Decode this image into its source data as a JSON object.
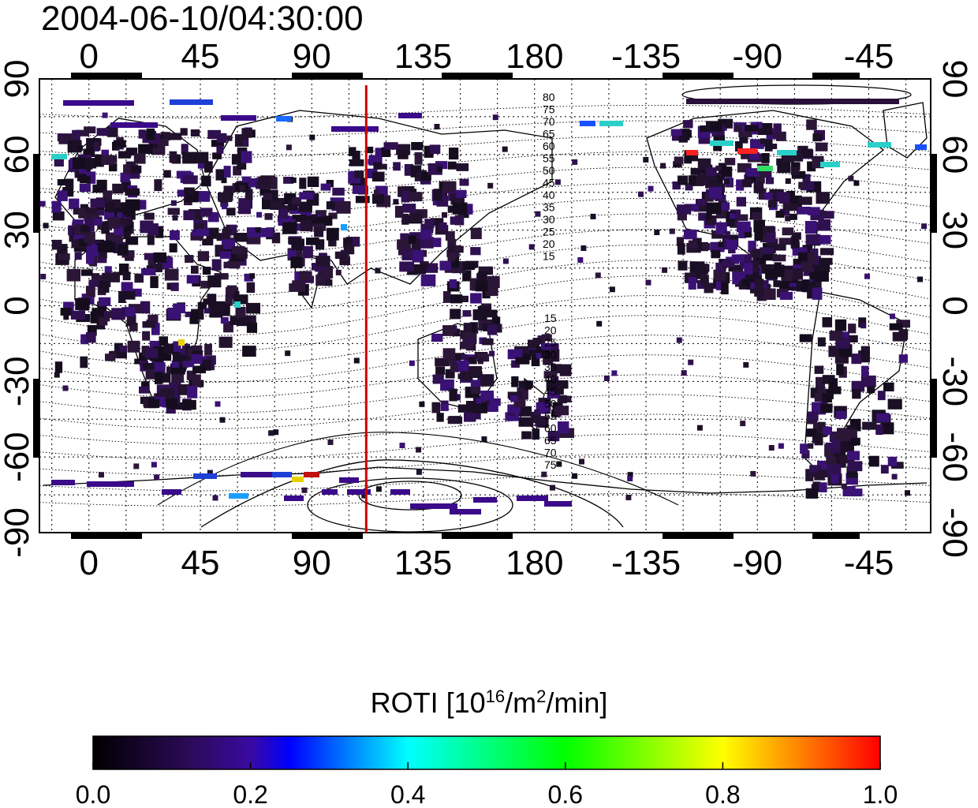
{
  "title": "2004-06-10/04:30:00",
  "map": {
    "lon_ticks": [
      "0",
      "45",
      "90",
      "135",
      "180",
      "-135",
      "-90",
      "-45"
    ],
    "lat_ticks": [
      "90",
      "60",
      "30",
      "0",
      "-30",
      "-60",
      "-90"
    ],
    "lon_range": [
      -20,
      340
    ],
    "lat_range": [
      -90,
      90
    ],
    "terminator_lon": 112,
    "terminator_color": "#d00000",
    "contour_labels_north": [
      "80",
      "75",
      "70",
      "65",
      "60",
      "55",
      "50",
      "45",
      "40",
      "35",
      "30",
      "25",
      "20",
      "15"
    ],
    "contour_labels_south": [
      "15",
      "20",
      "25",
      "30",
      "35",
      "40",
      "45",
      "50",
      "55",
      "60",
      "65",
      "70",
      "75"
    ]
  },
  "colorbar": {
    "label_prefix": "ROTI  [10",
    "label_sup1": "16",
    "label_mid": "/m",
    "label_sup2": "2",
    "label_suffix": "/min]",
    "ticks": [
      "0.0",
      "0.2",
      "0.4",
      "0.6",
      "0.8",
      "1.0"
    ],
    "range": [
      0.0,
      1.0
    ],
    "stops": [
      "#000000",
      "#3a0a6e",
      "#3a0a9e",
      "#0000ff",
      "#00ffff",
      "#00ff00",
      "#ffff00",
      "#ff0000"
    ]
  }
}
